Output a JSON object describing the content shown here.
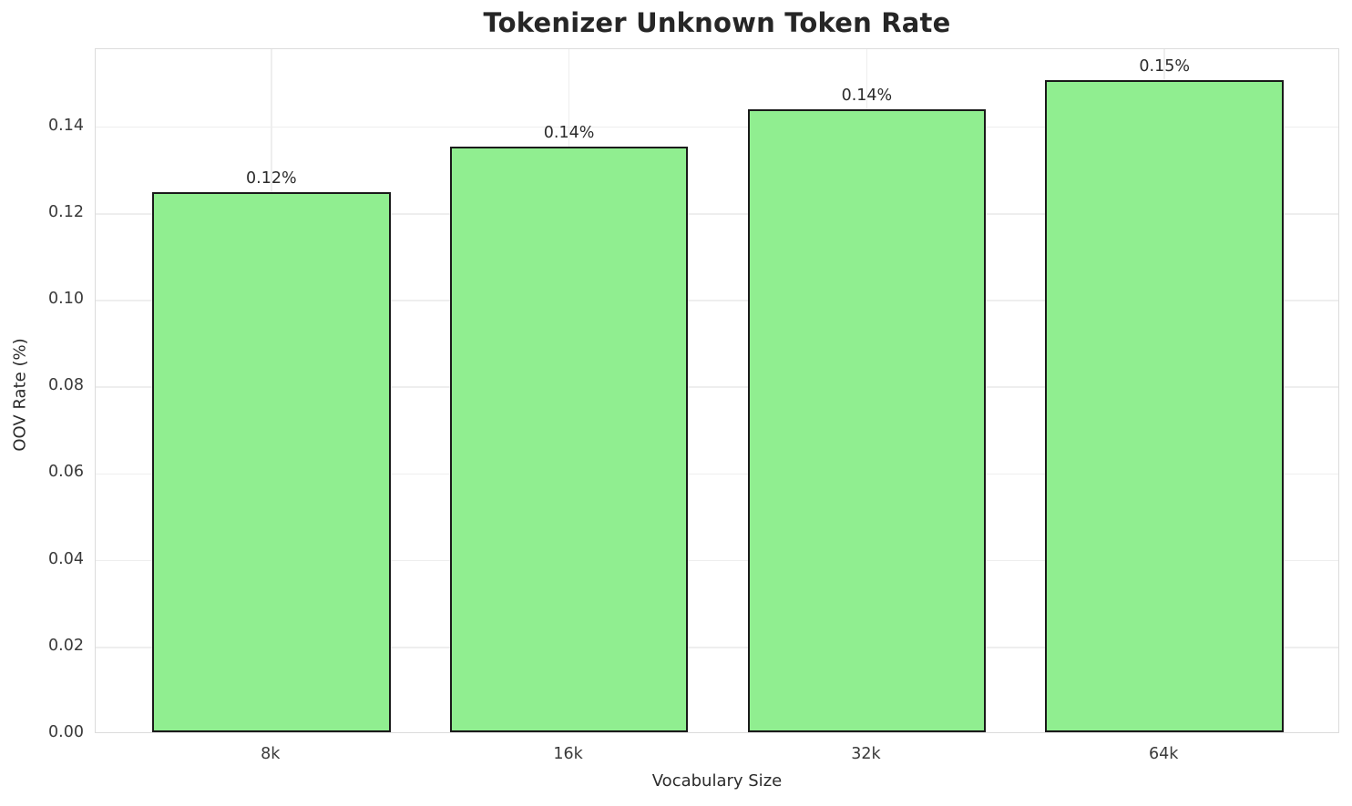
{
  "chart_data": {
    "type": "bar",
    "title": "Tokenizer Unknown Token Rate",
    "xlabel": "Vocabulary Size",
    "ylabel": "OOV Rate (%)",
    "categories": [
      "8k",
      "16k",
      "32k",
      "64k"
    ],
    "values": [
      0.1247,
      0.1352,
      0.1437,
      0.1505
    ],
    "bar_labels": [
      "0.12%",
      "0.14%",
      "0.14%",
      "0.15%"
    ],
    "ylim": [
      0,
      0.158
    ],
    "xlim": [
      -0.59,
      3.59
    ],
    "bar_width": 0.8,
    "yticks": [
      0.0,
      0.02,
      0.04,
      0.06,
      0.08,
      0.1,
      0.12,
      0.14
    ],
    "ytick_labels": [
      "0.00",
      "0.02",
      "0.04",
      "0.06",
      "0.08",
      "0.10",
      "0.12",
      "0.14"
    ],
    "grid": true,
    "legend": false,
    "colors": {
      "bar_fill": "#90EE90",
      "bar_edge": "#1a1a1a",
      "grid": "#eeeeee",
      "spine": "#dcdcdc",
      "text": "#2b2b2b",
      "background": "#ffffff"
    }
  }
}
